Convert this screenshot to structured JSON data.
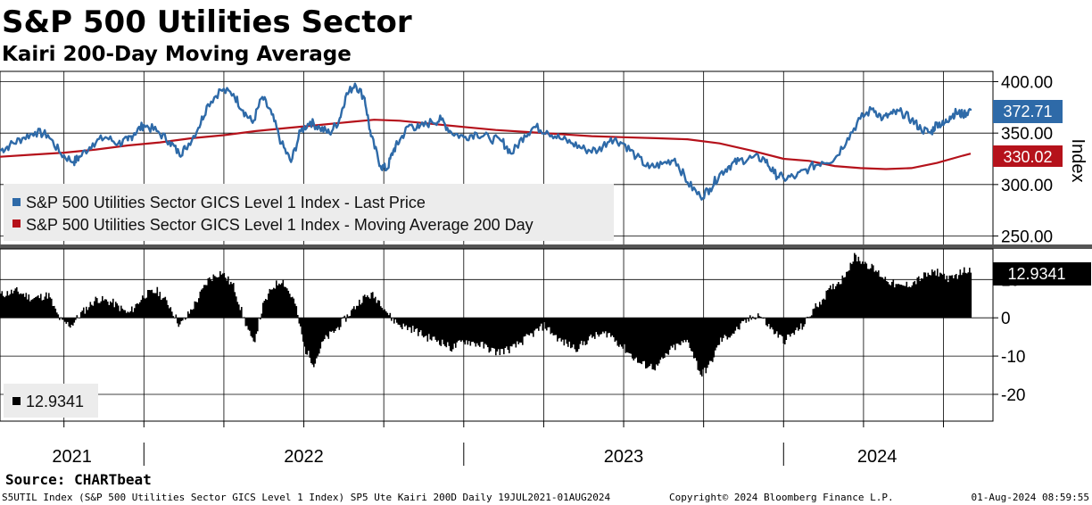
{
  "title": "S&P 500 Utilities Sector",
  "subtitle": "Kairi 200-Day Moving Average",
  "source": "Source: CHARTbeat",
  "footer": {
    "left": "S5UTIL Index (S&P 500 Utilities Sector GICS Level 1 Index) SP5 Ute Kairi 200D  Daily 19JUL2021-01AUG2024",
    "center": "Copyright© 2024 Bloomberg Finance L.P.",
    "right": "01-Aug-2024 08:59:55"
  },
  "colors": {
    "price": "#2e6aa8",
    "ma": "#b5121b",
    "kairi": "#000000",
    "grid": "#000000"
  },
  "chart_data": [
    {
      "type": "line",
      "title": "S&P 500 Utilities Sector",
      "ylabel": "Index",
      "ylim": [
        240,
        410
      ],
      "yticks": [
        "400.00",
        "350.00",
        "300.00",
        "250.00"
      ],
      "ytick_values": [
        400,
        350,
        300,
        250
      ],
      "years": [
        "2021",
        "2022",
        "2023",
        "2024"
      ],
      "time_range": [
        2021.55,
        2024.585
      ],
      "legend": {
        "price": "S&P 500 Utilities Sector GICS Level 1 Index - Last Price",
        "ma": "S&P 500 Utilities Sector GICS Level 1 Index - Moving Average 200 Day"
      },
      "last_price_label": "372.71",
      "last_ma_label": "330.02",
      "series": [
        {
          "name": "Last Price",
          "t": [
            2021.55,
            2021.58,
            2021.62,
            2021.66,
            2021.7,
            2021.74,
            2021.78,
            2021.8,
            2021.84,
            2021.88,
            2021.92,
            2021.95,
            2021.97,
            2022.0,
            2022.04,
            2022.08,
            2022.11,
            2022.13,
            2022.17,
            2022.2,
            2022.24,
            2022.28,
            2022.31,
            2022.34,
            2022.37,
            2022.4,
            2022.43,
            2022.46,
            2022.49,
            2022.52,
            2022.55,
            2022.58,
            2022.61,
            2022.63,
            2022.66,
            2022.69,
            2022.71,
            2022.74,
            2022.76,
            2022.78,
            2022.8,
            2022.83,
            2022.86,
            2022.9,
            2022.93,
            2022.96,
            2023.0,
            2023.04,
            2023.08,
            2023.12,
            2023.15,
            2023.19,
            2023.22,
            2023.26,
            2023.3,
            2023.34,
            2023.38,
            2023.42,
            2023.46,
            2023.5,
            2023.54,
            2023.58,
            2023.62,
            2023.66,
            2023.7,
            2023.74,
            2023.77,
            2023.8,
            2023.83,
            2023.86,
            2023.9,
            2023.94,
            2023.97,
            2024.0,
            2024.04,
            2024.08,
            2024.12,
            2024.16,
            2024.2,
            2024.24,
            2024.28,
            2024.31,
            2024.34,
            2024.37,
            2024.4,
            2024.43,
            2024.46,
            2024.48,
            2024.5,
            2024.52,
            2024.54,
            2024.56,
            2024.585
          ],
          "values": [
            333,
            338,
            345,
            351,
            348,
            330,
            322,
            327,
            340,
            346,
            340,
            343,
            350,
            358,
            352,
            342,
            330,
            335,
            355,
            378,
            392,
            388,
            372,
            360,
            385,
            368,
            340,
            322,
            352,
            361,
            355,
            350,
            362,
            385,
            398,
            384,
            347,
            318,
            315,
            333,
            343,
            358,
            355,
            361,
            363,
            351,
            346,
            350,
            345,
            342,
            330,
            348,
            356,
            352,
            345,
            340,
            334,
            333,
            345,
            340,
            327,
            316,
            320,
            325,
            302,
            288,
            296,
            310,
            318,
            323,
            326,
            325,
            311,
            306,
            308,
            316,
            322,
            325,
            345,
            364,
            374,
            364,
            369,
            370,
            363,
            354,
            350,
            360,
            358,
            366,
            370,
            368,
            372.71
          ]
        },
        {
          "name": "Moving Average 200 Day",
          "t": [
            2021.55,
            2021.65,
            2021.75,
            2021.85,
            2021.95,
            2022.05,
            2022.15,
            2022.25,
            2022.35,
            2022.45,
            2022.55,
            2022.65,
            2022.72,
            2022.8,
            2022.9,
            2023.0,
            2023.1,
            2023.2,
            2023.3,
            2023.4,
            2023.5,
            2023.6,
            2023.7,
            2023.8,
            2023.9,
            2024.0,
            2024.08,
            2024.16,
            2024.24,
            2024.32,
            2024.4,
            2024.48,
            2024.56,
            2024.585
          ],
          "values": [
            327,
            329,
            331,
            334,
            338,
            341,
            345,
            348,
            352,
            355,
            358,
            361,
            363,
            362,
            359,
            356,
            353,
            351,
            349,
            347,
            346,
            345,
            344,
            340,
            333,
            325,
            323,
            318,
            316,
            315,
            316,
            321,
            328,
            330.02
          ]
        }
      ]
    },
    {
      "type": "bar",
      "title": "Kairi 200-Day",
      "ylim": [
        -27,
        18
      ],
      "yticks": [
        "10",
        "0",
        "-10",
        "-20"
      ],
      "ytick_values": [
        10,
        0,
        -10,
        -20
      ],
      "last_value_label": "12.9341",
      "legend": {
        "value": "12.9341"
      },
      "t": [
        2021.55,
        2021.6,
        2021.65,
        2021.7,
        2021.72,
        2021.74,
        2021.77,
        2021.8,
        2021.85,
        2021.9,
        2021.95,
        2022.0,
        2022.04,
        2022.08,
        2022.11,
        2022.13,
        2022.16,
        2022.2,
        2022.24,
        2022.28,
        2022.31,
        2022.34,
        2022.37,
        2022.4,
        2022.43,
        2022.47,
        2022.5,
        2022.53,
        2022.56,
        2022.6,
        2022.64,
        2022.68,
        2022.71,
        2022.74,
        2022.77,
        2022.8,
        2022.84,
        2022.88,
        2022.92,
        2022.96,
        2023.0,
        2023.05,
        2023.1,
        2023.15,
        2023.2,
        2023.25,
        2023.3,
        2023.35,
        2023.4,
        2023.45,
        2023.5,
        2023.55,
        2023.6,
        2023.65,
        2023.7,
        2023.74,
        2023.77,
        2023.8,
        2023.84,
        2023.88,
        2023.92,
        2023.96,
        2024.0,
        2024.03,
        2024.06,
        2024.09,
        2024.12,
        2024.15,
        2024.18,
        2024.22,
        2024.26,
        2024.29,
        2024.32,
        2024.36,
        2024.4,
        2024.44,
        2024.48,
        2024.52,
        2024.555,
        2024.585
      ],
      "values": [
        6,
        7,
        5,
        6,
        2,
        -1,
        -2,
        1,
        5,
        4,
        1,
        6,
        7,
        3,
        -2,
        0,
        4,
        10,
        12,
        8,
        0,
        -7,
        3,
        8,
        10,
        4,
        -8,
        -12,
        -6,
        -3,
        1,
        5,
        6,
        4,
        0,
        -2,
        -3,
        -5,
        -6,
        -8,
        -6,
        -7,
        -9,
        -8,
        -5,
        -2,
        -6,
        -8,
        -5,
        -4,
        -8,
        -12,
        -13,
        -8,
        -6,
        -15,
        -12,
        -6,
        -4,
        -1,
        1,
        -3,
        -6,
        -4,
        -2,
        2,
        5,
        8,
        10,
        16,
        14,
        12,
        10,
        8,
        9,
        11,
        12,
        10,
        12,
        12.9341
      ]
    }
  ]
}
